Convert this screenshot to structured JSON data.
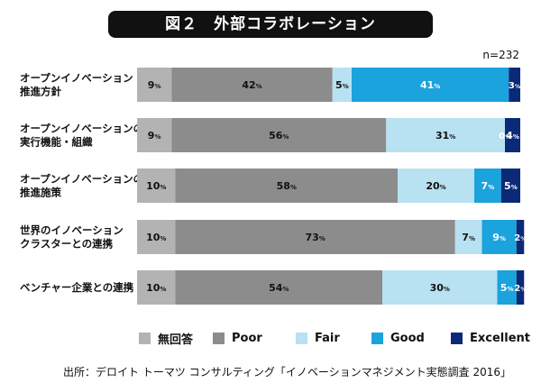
{
  "header": {
    "title": "図２　外部コラボレーション",
    "n_label": "n=232"
  },
  "chart_data": {
    "type": "bar",
    "orientation": "horizontal",
    "stacked": true,
    "percent_unit": "%",
    "categories": [
      [
        "オープンイノベーション",
        "推進方針"
      ],
      [
        "オープンイノベーションの",
        "実行機能・組織"
      ],
      [
        "オープンイノベーションの",
        "推進施策"
      ],
      [
        "世界のイノベーション",
        "クラスターとの連携"
      ],
      [
        "ベンチャー企業との連携"
      ]
    ],
    "series": [
      {
        "name": "無回答",
        "color": "#b3b3b3",
        "values": [
          9,
          9,
          10,
          10,
          10
        ]
      },
      {
        "name": "Poor",
        "color": "#8c8c8c",
        "values": [
          42,
          56,
          58,
          73,
          54
        ]
      },
      {
        "name": "Fair",
        "color": "#b8e1f2",
        "values": [
          5,
          31,
          20,
          7,
          30
        ]
      },
      {
        "name": "Good",
        "color": "#1aa3dd",
        "values": [
          41,
          0,
          7,
          9,
          5
        ]
      },
      {
        "name": "Excellent",
        "color": "#0a2a78",
        "values": [
          3,
          4,
          5,
          2,
          2
        ]
      }
    ],
    "xlim": [
      0,
      100
    ],
    "legend_position": "bottom"
  },
  "legend": {
    "items": [
      "無回答",
      "Poor",
      "Fair",
      "Good",
      "Excellent"
    ]
  },
  "source": "出所：デロイト トーマツ コンサルティング「イノベーションマネジメント実態調査 2016」"
}
